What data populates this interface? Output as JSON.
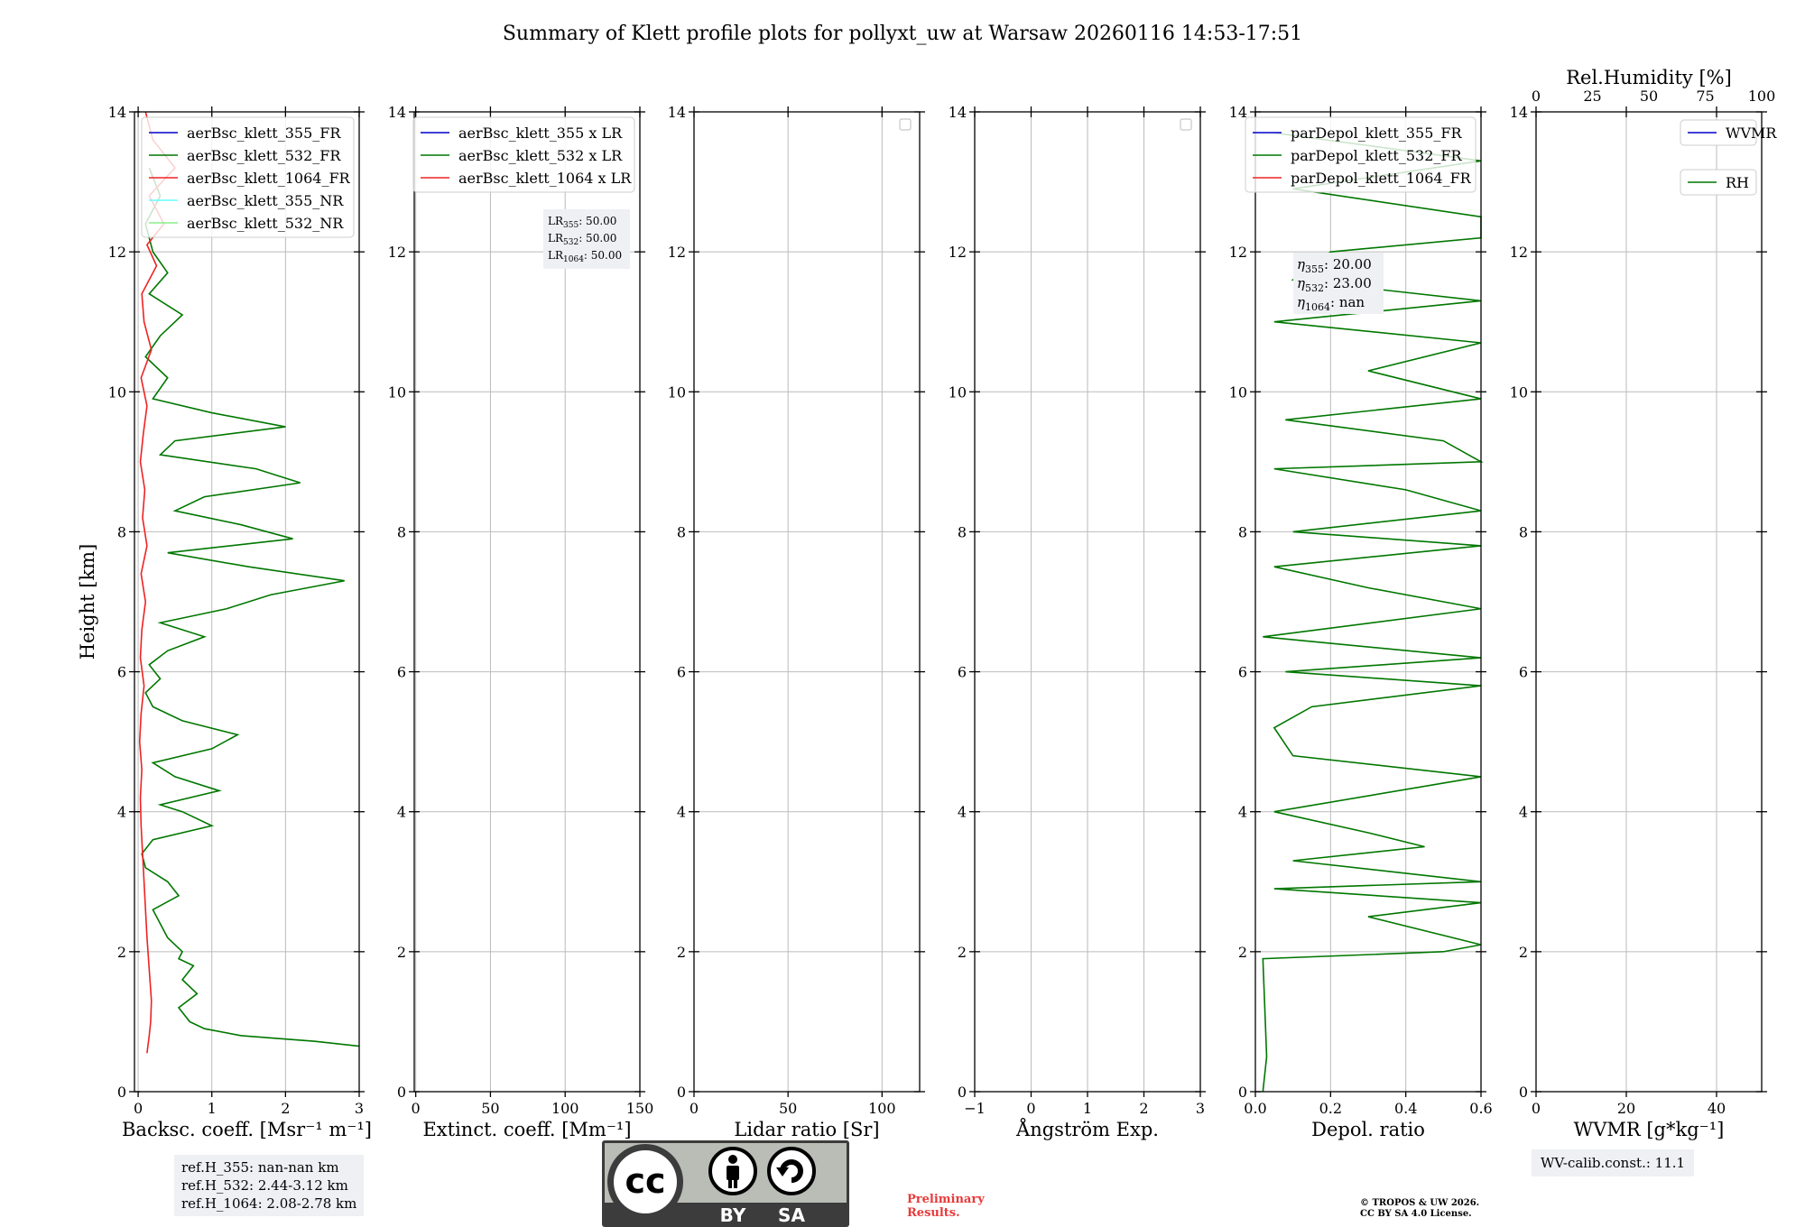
{
  "title": "Summary of Klett profile plots for pollyxt_uw at Warsaw 20260116 14:53-17:51",
  "colors": {
    "c355": "#0000cc",
    "c532": "#007700",
    "c1064": "#ee2222",
    "c355nr": "#66ffff",
    "c532nr": "#88ee88",
    "grid": "#bbbbbb"
  },
  "chart_data": [
    {
      "id": "bsc",
      "type": "line",
      "xlabel": "Backsc. coeff. [Msr⁻¹ m⁻¹]",
      "ylabel": "Height [km]",
      "xlim": [
        -0.05,
        3
      ],
      "ylim": [
        0,
        14
      ],
      "xticks": [
        0,
        1,
        2,
        3
      ],
      "xtick_labels": [
        "0",
        "1",
        "2",
        "3"
      ],
      "yticks": [
        0,
        2,
        4,
        6,
        8,
        10,
        12,
        14
      ],
      "ytick_labels": [
        "0",
        "2",
        "4",
        "6",
        "8",
        "10",
        "12",
        "14"
      ],
      "legend": {
        "position": "top-right",
        "entries": [
          {
            "label": "aerBsc_klett_355_FR",
            "color": "#0000cc"
          },
          {
            "label": "aerBsc_klett_532_FR",
            "color": "#007700"
          },
          {
            "label": "aerBsc_klett_1064_FR",
            "color": "#ee2222"
          },
          {
            "label": "aerBsc_klett_355_NR",
            "color": "#66ffff"
          },
          {
            "label": "aerBsc_klett_532_NR",
            "color": "#88ee88"
          }
        ]
      },
      "series": [
        {
          "name": "aerBsc_klett_532_FR",
          "color": "#007700",
          "x": [
            3.0,
            2.4,
            1.4,
            0.9,
            0.7,
            0.55,
            0.8,
            0.6,
            0.75,
            0.55,
            0.6,
            0.4,
            0.3,
            0.2,
            0.55,
            0.4,
            0.1,
            0.05,
            0.2,
            1.0,
            0.6,
            0.3,
            1.1,
            0.5,
            0.2,
            1.0,
            1.35,
            0.6,
            0.2,
            0.1,
            0.3,
            0.15,
            0.4,
            0.9,
            0.3,
            1.2,
            1.8,
            2.8,
            1.5,
            0.4,
            2.1,
            1.4,
            0.5,
            0.9,
            2.2,
            1.6,
            0.3,
            0.5,
            2.0,
            1.0,
            0.2,
            0.4,
            0.1,
            0.3,
            0.6,
            0.15,
            0.4,
            0.2,
            0.1,
            0.3,
            0.15
          ],
          "y": [
            0.65,
            0.72,
            0.8,
            0.9,
            1.0,
            1.2,
            1.4,
            1.6,
            1.8,
            1.9,
            2.0,
            2.2,
            2.4,
            2.6,
            2.8,
            3.0,
            3.2,
            3.4,
            3.6,
            3.8,
            4.0,
            4.1,
            4.3,
            4.5,
            4.7,
            4.9,
            5.1,
            5.3,
            5.5,
            5.7,
            5.9,
            6.1,
            6.3,
            6.5,
            6.7,
            6.9,
            7.1,
            7.3,
            7.5,
            7.7,
            7.9,
            8.1,
            8.3,
            8.5,
            8.7,
            8.9,
            9.1,
            9.3,
            9.5,
            9.7,
            9.9,
            10.2,
            10.5,
            10.8,
            11.1,
            11.4,
            11.7,
            12.0,
            12.4,
            12.8,
            13.2
          ]
        },
        {
          "name": "aerBsc_klett_1064_FR",
          "color": "#ee2222",
          "x": [
            0.12,
            0.15,
            0.17,
            0.18,
            0.16,
            0.14,
            0.12,
            0.1,
            0.08,
            0.06,
            0.04,
            0.03,
            0.05,
            0.02,
            0.04,
            0.08,
            0.03,
            0.05,
            0.1,
            0.04,
            0.12,
            0.06,
            0.09,
            0.03,
            0.07,
            0.12,
            0.04,
            0.18,
            0.08,
            0.05,
            0.25,
            0.12,
            0.35,
            0.15,
            0.5,
            0.2,
            0.1
          ],
          "y": [
            0.55,
            0.8,
            1.0,
            1.3,
            1.6,
            1.9,
            2.2,
            2.6,
            3.0,
            3.4,
            3.8,
            4.2,
            4.6,
            5.0,
            5.4,
            5.8,
            6.2,
            6.6,
            7.0,
            7.4,
            7.8,
            8.2,
            8.6,
            9.0,
            9.4,
            9.8,
            10.2,
            10.6,
            11.0,
            11.4,
            11.8,
            12.1,
            12.4,
            12.8,
            13.2,
            13.6,
            14.0
          ]
        }
      ],
      "annotations": [
        "ref.H_355: nan-nan km",
        "ref.H_532: 2.44-3.12 km",
        "ref.H_1064: 2.08-2.78 km"
      ]
    },
    {
      "id": "ext",
      "type": "line",
      "xlabel": "Extinct. coeff. [Mm⁻¹]",
      "xlim": [
        -1,
        150
      ],
      "ylim": [
        0,
        14
      ],
      "xticks": [
        0,
        50,
        100,
        150
      ],
      "xtick_labels": [
        "0",
        "50",
        "100",
        "150"
      ],
      "yticks": [
        0,
        2,
        4,
        6,
        8,
        10,
        12,
        14
      ],
      "ytick_labels": [
        "0",
        "2",
        "4",
        "6",
        "8",
        "10",
        "12",
        "14"
      ],
      "legend": {
        "position": "top-right",
        "entries": [
          {
            "label": "aerBsc_klett_355 x LR",
            "color": "#0000cc"
          },
          {
            "label": "aerBsc_klett_532 x LR",
            "color": "#007700"
          },
          {
            "label": "aerBsc_klett_1064 x LR",
            "color": "#ee2222"
          }
        ]
      },
      "lr_labels": [
        "LR",
        "LR",
        "LR"
      ],
      "lr_subs": [
        "355",
        "532",
        "1064"
      ],
      "lr_values": [
        ": 50.00",
        ": 50.00",
        ": 50.00"
      ]
    },
    {
      "id": "lr",
      "type": "line",
      "xlabel": "Lidar ratio [Sr]",
      "xlim": [
        0,
        120
      ],
      "ylim": [
        0,
        14
      ],
      "xticks": [
        0,
        50,
        100
      ],
      "xtick_labels": [
        "0",
        "50",
        "100"
      ],
      "yticks": [
        0,
        2,
        4,
        6,
        8,
        10,
        12,
        14
      ],
      "ytick_labels": [
        "0",
        "2",
        "4",
        "6",
        "8",
        "10",
        "12",
        "14"
      ]
    },
    {
      "id": "ang",
      "type": "line",
      "xlabel": "Ångström Exp.",
      "xlim": [
        -1,
        3
      ],
      "ylim": [
        0,
        14
      ],
      "xticks": [
        -1,
        0,
        1,
        2,
        3
      ],
      "xtick_labels": [
        "−1",
        "0",
        "1",
        "2",
        "3"
      ],
      "yticks": [
        0,
        2,
        4,
        6,
        8,
        10,
        12,
        14
      ],
      "ytick_labels": [
        "0",
        "2",
        "4",
        "6",
        "8",
        "10",
        "12",
        "14"
      ]
    },
    {
      "id": "depol",
      "type": "line",
      "xlabel": "Depol. ratio",
      "xlim": [
        0,
        0.6
      ],
      "ylim": [
        0,
        14
      ],
      "xticks": [
        0,
        0.2,
        0.4,
        0.6
      ],
      "xtick_labels": [
        "0.0",
        "0.2",
        "0.4",
        "0.6"
      ],
      "yticks": [
        0,
        2,
        4,
        6,
        8,
        10,
        12,
        14
      ],
      "ytick_labels": [
        "0",
        "2",
        "4",
        "6",
        "8",
        "10",
        "12",
        "14"
      ],
      "legend": {
        "position": "top-right",
        "entries": [
          {
            "label": "parDepol_klett_355_FR",
            "color": "#0000cc"
          },
          {
            "label": "parDepol_klett_532_FR",
            "color": "#007700"
          },
          {
            "label": "parDepol_klett_1064_FR",
            "color": "#ee2222"
          }
        ]
      },
      "eta_subs": [
        "355",
        "532",
        "1064"
      ],
      "eta_values": [
        ": 20.00",
        ": 23.00",
        ": nan"
      ],
      "series": [
        {
          "name": "parDepol_klett_532_FR",
          "color": "#007700",
          "x": [
            0.02,
            0.03,
            0.02,
            0.5,
            0.6,
            0.3,
            0.6,
            0.05,
            0.6,
            0.1,
            0.45,
            0.3,
            0.05,
            0.6,
            0.1,
            0.05,
            0.15,
            0.6,
            0.08,
            0.6,
            0.02,
            0.6,
            0.3,
            0.05,
            0.6,
            0.1,
            0.6,
            0.4,
            0.05,
            0.6,
            0.5,
            0.08,
            0.6,
            0.3,
            0.6,
            0.05,
            0.6,
            0.1,
            0.2,
            0.6,
            0.6,
            0.1,
            0.6,
            0.05
          ],
          "y": [
            0.0,
            0.5,
            1.9,
            2.0,
            2.1,
            2.5,
            2.7,
            2.9,
            3.0,
            3.3,
            3.5,
            3.7,
            4.0,
            4.5,
            4.8,
            5.2,
            5.5,
            5.8,
            6.0,
            6.2,
            6.5,
            6.9,
            7.2,
            7.5,
            7.8,
            8.0,
            8.3,
            8.6,
            8.9,
            9.0,
            9.3,
            9.6,
            9.9,
            10.3,
            10.7,
            11.0,
            11.3,
            11.6,
            12.0,
            12.2,
            12.5,
            12.9,
            13.3,
            13.7
          ]
        }
      ]
    },
    {
      "id": "wv",
      "type": "line",
      "xlabel": "WVMR [g*kg⁻¹]",
      "xlim": [
        0,
        50
      ],
      "ylim": [
        0,
        14
      ],
      "xticks": [
        0,
        20,
        40
      ],
      "xtick_labels": [
        "0",
        "20",
        "40"
      ],
      "top_xlabel": "Rel.Humidity [%]",
      "top_xticks": [
        0,
        25,
        50,
        75,
        100
      ],
      "top_xtick_labels": [
        "0",
        "25",
        "50",
        "75",
        "100"
      ],
      "yticks": [
        0,
        2,
        4,
        6,
        8,
        10,
        12,
        14
      ],
      "ytick_labels": [
        "0",
        "2",
        "4",
        "6",
        "8",
        "10",
        "12",
        "14"
      ],
      "legend": {
        "position": "top-right",
        "entries": [
          {
            "label": "WVMR",
            "color": "#0000cc"
          },
          {
            "label": "RH",
            "color": "#007700"
          }
        ]
      },
      "annotation": "WV-calib.const.: 11.1"
    }
  ],
  "footer": {
    "prelim_line1": "Preliminary",
    "prelim_line2": "Results.",
    "copyright_line1": "© TROPOS & UW 2026.",
    "copyright_line2": "CC BY SA 4.0 License.",
    "cc_text": "cc",
    "by_text": "BY",
    "sa_text": "SA"
  }
}
